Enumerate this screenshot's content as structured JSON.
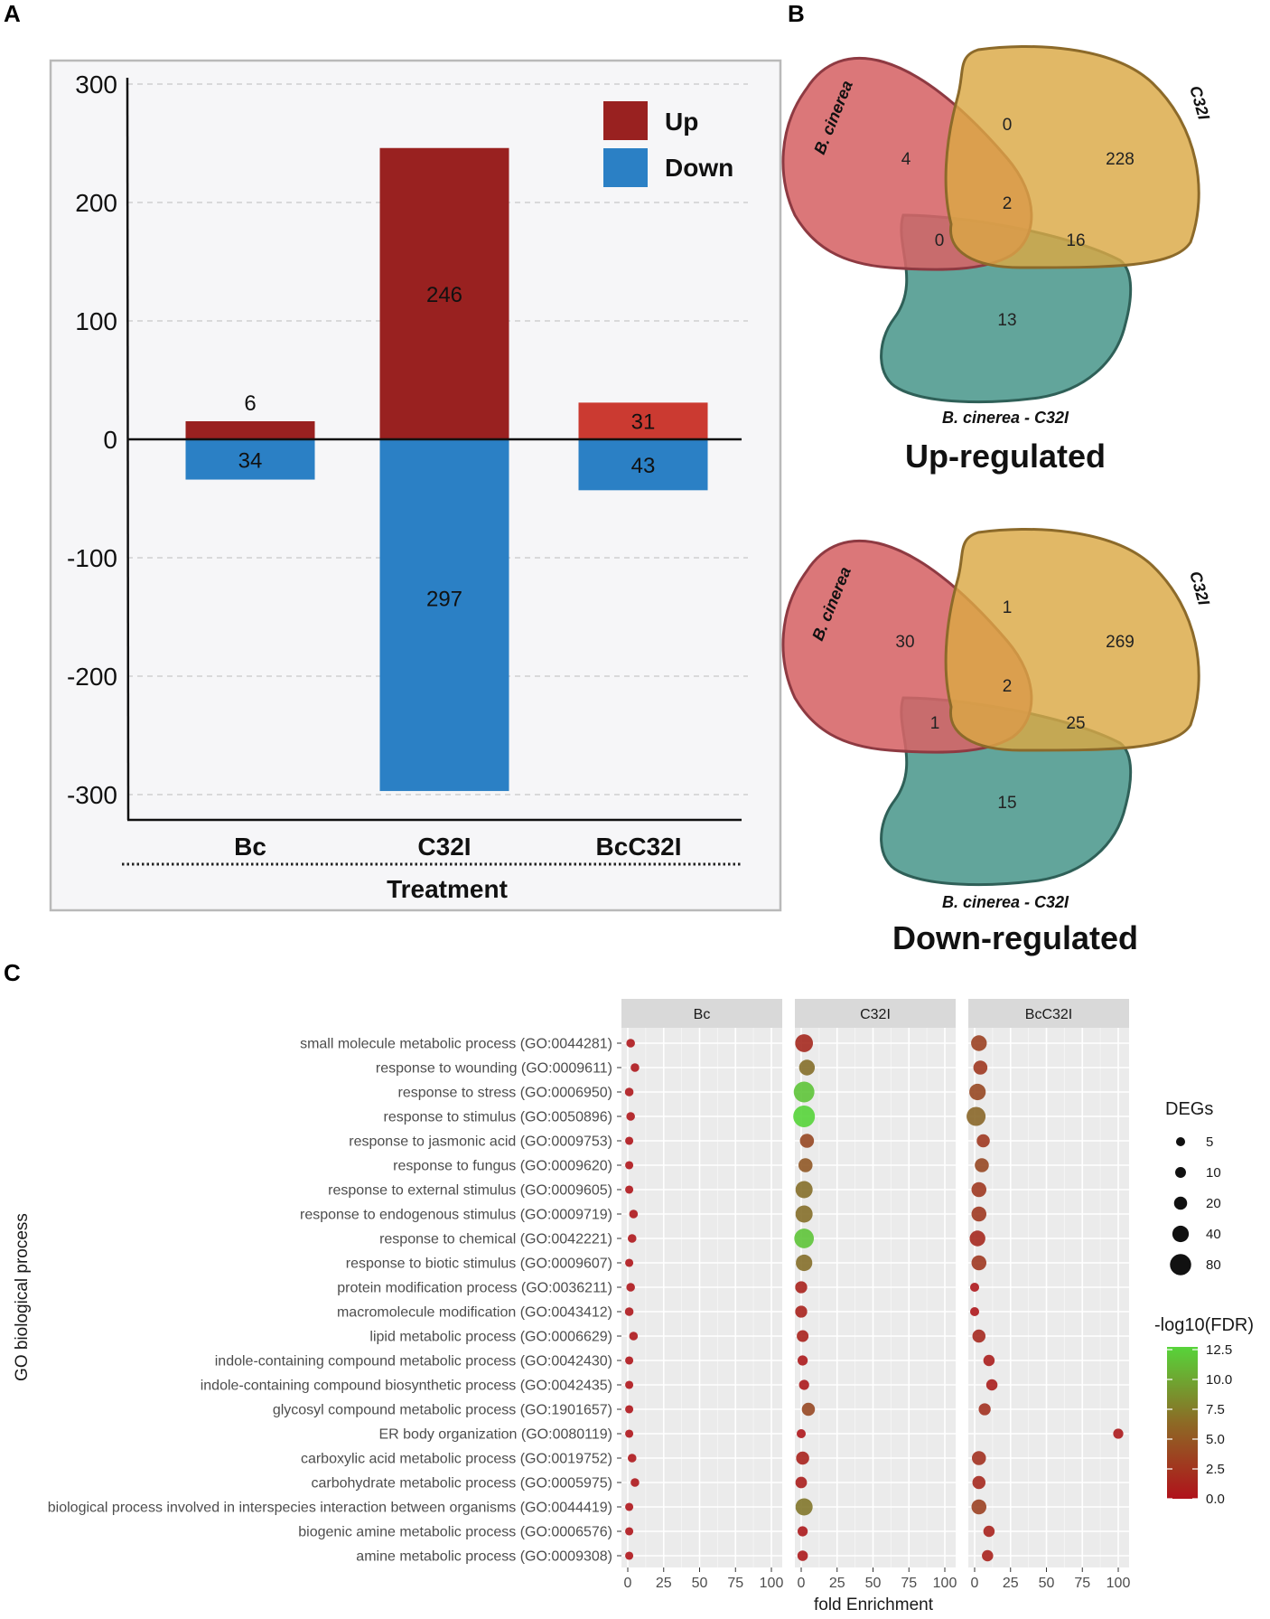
{
  "panels": {
    "a": "A",
    "b": "B",
    "c": "C"
  },
  "chart_data": [
    {
      "type": "bar",
      "title": "",
      "xlabel": "Treatment",
      "ylabel": "",
      "ylim": [
        -310,
        310
      ],
      "yticks": [
        300,
        200,
        100,
        0,
        -100,
        -200,
        -300
      ],
      "categories": [
        "Bc",
        "C32I",
        "BcC32I"
      ],
      "series": [
        {
          "name": "Up",
          "color": "#992120",
          "values": [
            6,
            246,
            31
          ]
        },
        {
          "name": "Down",
          "color": "#2b80c5",
          "values": [
            34,
            297,
            43
          ]
        }
      ],
      "legend": "top-right"
    },
    {
      "type": "venn",
      "title": "Up-regulated",
      "sets": [
        "B. cinerea",
        "C32I",
        "B. cinerea - C32I"
      ],
      "regions": {
        "a_only": "4",
        "b_only": "228",
        "c_only": "13",
        "ab": "0",
        "ac": "0",
        "bc": "16",
        "abc": "2"
      }
    },
    {
      "type": "venn",
      "title": "Down-regulated",
      "sets": [
        "B. cinerea",
        "C32I",
        "B. cinerea - C32I"
      ],
      "regions": {
        "a_only": "30",
        "b_only": "269",
        "c_only": "15",
        "ab": "1",
        "ac": "1",
        "bc": "25",
        "abc": "2"
      }
    },
    {
      "type": "scatter",
      "title": "",
      "xlabel": "fold Enrichment",
      "ylabel": "GO biological process",
      "xlim": [
        0,
        100
      ],
      "xticks": [
        0,
        25,
        50,
        75,
        100
      ],
      "facets": [
        "Bc",
        "C32I",
        "BcC32I"
      ],
      "terms": [
        "small molecule metabolic process (GO:0044281)",
        "response to wounding (GO:0009611)",
        "response to stress (GO:0006950)",
        "response to stimulus (GO:0050896)",
        "response to jasmonic acid (GO:0009753)",
        "response to fungus (GO:0009620)",
        "response to external stimulus (GO:0009605)",
        "response to endogenous stimulus (GO:0009719)",
        "response to chemical (GO:0042221)",
        "response to biotic stimulus (GO:0009607)",
        "protein modification process (GO:0036211)",
        "macromolecule modification (GO:0043412)",
        "lipid metabolic process (GO:0006629)",
        "indole-containing compound metabolic process (GO:0042430)",
        "indole-containing compound biosynthetic process (GO:0042435)",
        "glycosyl compound metabolic process (GO:1901657)",
        "ER body organization (GO:0080119)",
        "carboxylic acid metabolic process (GO:0019752)",
        "carbohydrate metabolic process (GO:0005975)",
        "biological process involved in interspecies interaction between organisms (GO:0044419)",
        "biogenic amine metabolic process (GO:0006576)",
        "amine metabolic process (GO:0009308)"
      ],
      "points": {
        "Bc": {
          "fe": [
            2,
            5,
            1,
            2,
            1,
            1,
            1,
            4,
            3,
            1,
            2,
            1,
            4,
            1,
            1,
            1,
            1,
            3,
            5,
            1,
            1,
            1
          ],
          "degs": [
            4,
            4,
            4,
            4,
            3,
            3,
            3,
            4,
            4,
            3,
            4,
            4,
            4,
            3,
            3,
            3,
            3,
            4,
            4,
            3,
            3,
            3
          ],
          "fdr": [
            0.3,
            0.3,
            0.3,
            0.3,
            0.2,
            0.2,
            0.2,
            0.3,
            0.3,
            0.2,
            0.3,
            0.3,
            0.3,
            0.2,
            0.2,
            0.2,
            0.2,
            0.3,
            0.3,
            0.2,
            0.2,
            0.2
          ]
        },
        "C32I": {
          "fe": [
            2,
            4,
            2,
            2,
            4,
            3,
            2,
            2,
            2,
            2,
            0,
            0,
            1,
            1,
            2,
            5,
            0,
            1,
            0,
            2,
            1,
            1
          ],
          "degs": [
            50,
            35,
            75,
            85,
            25,
            25,
            45,
            45,
            65,
            40,
            15,
            15,
            14,
            8,
            8,
            20,
            5,
            20,
            13,
            45,
            8,
            9
          ],
          "fdr": [
            1.5,
            6.0,
            11.5,
            12.5,
            3.5,
            4.5,
            6.0,
            6.0,
            11.5,
            6.0,
            1.0,
            1.0,
            1.0,
            0.5,
            0.5,
            3.5,
            0.3,
            1.0,
            0.8,
            6.5,
            0.5,
            0.5
          ]
        },
        "BcC32I": {
          "fe": [
            3,
            4,
            2,
            1,
            6,
            5,
            3,
            3,
            2,
            3,
            0,
            0,
            3,
            10,
            12,
            7,
            100,
            3,
            3,
            3,
            10,
            9
          ],
          "degs": [
            35,
            25,
            40,
            60,
            20,
            25,
            30,
            30,
            35,
            30,
            5,
            5,
            20,
            12,
            12,
            15,
            8,
            25,
            20,
            30,
            12,
            12
          ],
          "fdr": [
            3.0,
            2.5,
            3.5,
            5.5,
            2.5,
            3.5,
            2.5,
            2.5,
            1.5,
            2.5,
            0.3,
            0.3,
            1.5,
            0.8,
            0.8,
            2.0,
            0.5,
            2.0,
            1.5,
            3.0,
            1.0,
            1.0
          ]
        }
      },
      "size_legend": {
        "title": "DEGs",
        "values": [
          "5",
          "10",
          "20",
          "40",
          "80"
        ]
      },
      "color_legend": {
        "title": "-log10(FDR)",
        "ticks": [
          "12.5",
          "10.0",
          "7.5",
          "5.0",
          "2.5",
          "0.0"
        ],
        "low_color": "#b0121b",
        "high_color": "#57d43a"
      }
    }
  ]
}
